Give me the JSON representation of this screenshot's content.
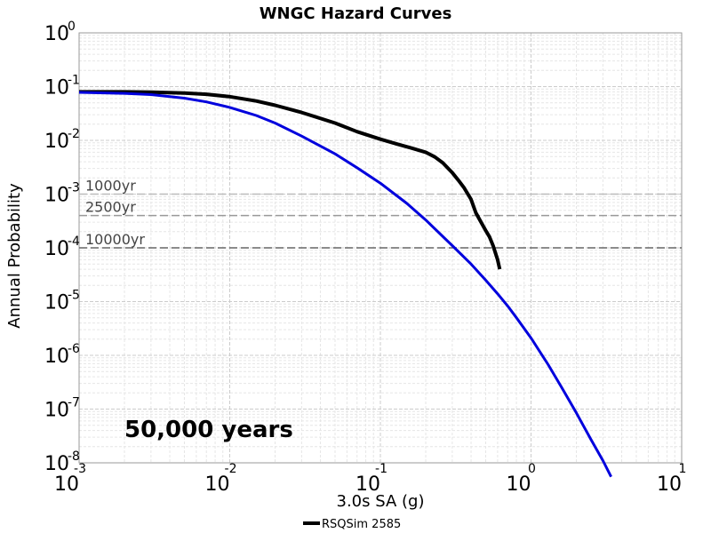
{
  "chart_data": {
    "type": "line",
    "title": "WNGC Hazard Curves",
    "xlabel": "3.0s SA (g)",
    "ylabel": "Annual Probability",
    "x_scale": "log",
    "y_scale": "log",
    "xlim": [
      0.001,
      10
    ],
    "ylim": [
      1e-08,
      1
    ],
    "x_ticks": [
      {
        "base": "10",
        "exp": "-3",
        "value": 0.001
      },
      {
        "base": "10",
        "exp": "-2",
        "value": 0.01
      },
      {
        "base": "10",
        "exp": "-1",
        "value": 0.1
      },
      {
        "base": "10",
        "exp": "0",
        "value": 1
      },
      {
        "base": "10",
        "exp": "1",
        "value": 10
      }
    ],
    "y_ticks": [
      {
        "base": "10",
        "exp": "0",
        "value": 1
      },
      {
        "base": "10",
        "exp": "-1",
        "value": 0.1
      },
      {
        "base": "10",
        "exp": "-2",
        "value": 0.01
      },
      {
        "base": "10",
        "exp": "-3",
        "value": 0.001
      },
      {
        "base": "10",
        "exp": "-4",
        "value": 0.0001
      },
      {
        "base": "10",
        "exp": "-5",
        "value": 1e-05
      },
      {
        "base": "10",
        "exp": "-6",
        "value": 1e-06
      },
      {
        "base": "10",
        "exp": "-7",
        "value": 1e-07
      },
      {
        "base": "10",
        "exp": "-8",
        "value": 1e-08
      }
    ],
    "grid": true,
    "reference_lines": [
      {
        "label": "1000yr",
        "y": 0.001,
        "color": "#bbbbbb"
      },
      {
        "label": "2500yr",
        "y": 0.0004,
        "color": "#999999"
      },
      {
        "label": "10000yr",
        "y": 0.0001,
        "color": "#666666"
      }
    ],
    "annotation": "50,000 years",
    "legend": {
      "position": "bottom-center"
    },
    "series": [
      {
        "name": "RSQSim 2585",
        "color": "#000000",
        "in_legend": true,
        "x": [
          0.001,
          0.002,
          0.003,
          0.005,
          0.007,
          0.01,
          0.015,
          0.02,
          0.03,
          0.05,
          0.07,
          0.1,
          0.13,
          0.16,
          0.2,
          0.23,
          0.26,
          0.3,
          0.33,
          0.36,
          0.4,
          0.43,
          0.46,
          0.5,
          0.53,
          0.56,
          0.6,
          0.62
        ],
        "y": [
          0.08,
          0.08,
          0.079,
          0.076,
          0.072,
          0.065,
          0.054,
          0.045,
          0.033,
          0.021,
          0.0145,
          0.0105,
          0.0085,
          0.0072,
          0.006,
          0.0049,
          0.0038,
          0.0025,
          0.0018,
          0.0013,
          0.0008,
          0.00045,
          0.00032,
          0.00021,
          0.00016,
          0.00011,
          6e-05,
          4e-05
        ]
      },
      {
        "name": "",
        "color": "#0000dd",
        "in_legend": false,
        "x": [
          0.001,
          0.002,
          0.003,
          0.005,
          0.007,
          0.01,
          0.015,
          0.02,
          0.03,
          0.05,
          0.07,
          0.1,
          0.15,
          0.2,
          0.3,
          0.4,
          0.5,
          0.6,
          0.7,
          0.8,
          1,
          1.3,
          1.6,
          2,
          2.5,
          3,
          3.4
        ],
        "y": [
          0.078,
          0.075,
          0.071,
          0.061,
          0.052,
          0.041,
          0.029,
          0.021,
          0.012,
          0.0056,
          0.0031,
          0.0016,
          0.00067,
          0.00033,
          0.00011,
          5e-05,
          2.5e-05,
          1.4e-05,
          8.3e-06,
          5e-06,
          2.1e-06,
          6.7e-07,
          2.5e-07,
          8.5e-08,
          2.7e-08,
          1.1e-08,
          5.5e-09
        ]
      }
    ]
  }
}
